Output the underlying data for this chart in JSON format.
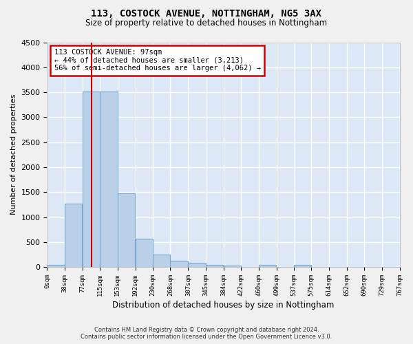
{
  "title": "113, COSTOCK AVENUE, NOTTINGHAM, NG5 3AX",
  "subtitle": "Size of property relative to detached houses in Nottingham",
  "xlabel": "Distribution of detached houses by size in Nottingham",
  "ylabel": "Number of detached properties",
  "bin_edges": [
    0,
    38,
    77,
    115,
    153,
    192,
    230,
    268,
    307,
    345,
    384,
    422,
    460,
    499,
    537,
    575,
    614,
    652,
    690,
    729,
    767
  ],
  "bar_heights": [
    40,
    1270,
    3510,
    3510,
    1480,
    570,
    250,
    130,
    80,
    45,
    35,
    0,
    40,
    0,
    45,
    0,
    0,
    0,
    0,
    0
  ],
  "bar_color": "#bad0e8",
  "bar_edge_color": "#7aaad0",
  "property_size": 97,
  "property_line_color": "#cc0000",
  "annotation_text": "113 COSTOCK AVENUE: 97sqm\n← 44% of detached houses are smaller (3,213)\n56% of semi-detached houses are larger (4,062) →",
  "annotation_box_color": "#cc0000",
  "ylim": [
    0,
    4500
  ],
  "yticks": [
    0,
    500,
    1000,
    1500,
    2000,
    2500,
    3000,
    3500,
    4000,
    4500
  ],
  "background_color": "#dce8f5",
  "grid_color": "#ffffff",
  "fig_bg_color": "#f0f0f0",
  "footer_line1": "Contains HM Land Registry data © Crown copyright and database right 2024.",
  "footer_line2": "Contains public sector information licensed under the Open Government Licence v3.0.",
  "tick_labels": [
    "0sqm",
    "38sqm",
    "77sqm",
    "115sqm",
    "153sqm",
    "192sqm",
    "230sqm",
    "268sqm",
    "307sqm",
    "345sqm",
    "384sqm",
    "422sqm",
    "460sqm",
    "499sqm",
    "537sqm",
    "575sqm",
    "614sqm",
    "652sqm",
    "690sqm",
    "729sqm",
    "767sqm"
  ]
}
